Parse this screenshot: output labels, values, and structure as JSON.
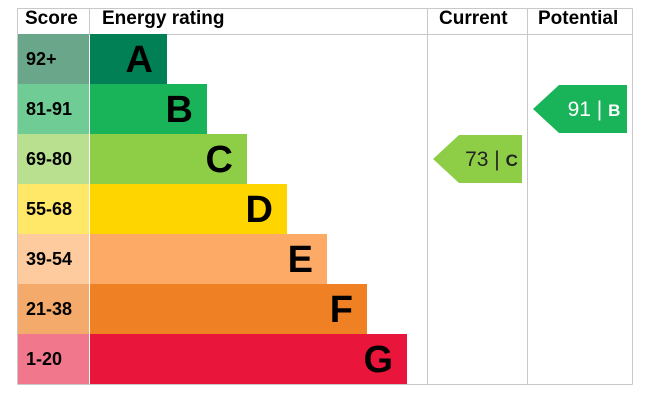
{
  "headers": {
    "score": "Score",
    "energy_rating": "Energy rating",
    "current": "Current",
    "potential": "Potential"
  },
  "chart_data": {
    "type": "bar",
    "title": "",
    "categories": [
      "A",
      "B",
      "C",
      "D",
      "E",
      "F",
      "G"
    ],
    "bands": [
      {
        "letter": "A",
        "score": "92+",
        "band_color": "#008054",
        "score_bg": "#6aa68a"
      },
      {
        "letter": "B",
        "score": "81-91",
        "band_color": "#19b459",
        "score_bg": "#70cc95"
      },
      {
        "letter": "C",
        "score": "69-80",
        "band_color": "#8dce46",
        "score_bg": "#b8e08f"
      },
      {
        "letter": "D",
        "score": "55-68",
        "band_color": "#ffd500",
        "score_bg": "#ffe768"
      },
      {
        "letter": "E",
        "score": "39-54",
        "band_color": "#fcaa65",
        "score_bg": "#fdcb9e"
      },
      {
        "letter": "F",
        "score": "21-38",
        "band_color": "#ef8023",
        "score_bg": "#f4aa6a"
      },
      {
        "letter": "G",
        "score": "1-20",
        "band_color": "#e9153b",
        "score_bg": "#f0778c"
      }
    ],
    "current": {
      "value": 73,
      "letter": "C",
      "separator": "|",
      "color": "#8dce46"
    },
    "potential": {
      "value": 91,
      "letter": "B",
      "separator": "|",
      "color": "#19b459"
    }
  }
}
